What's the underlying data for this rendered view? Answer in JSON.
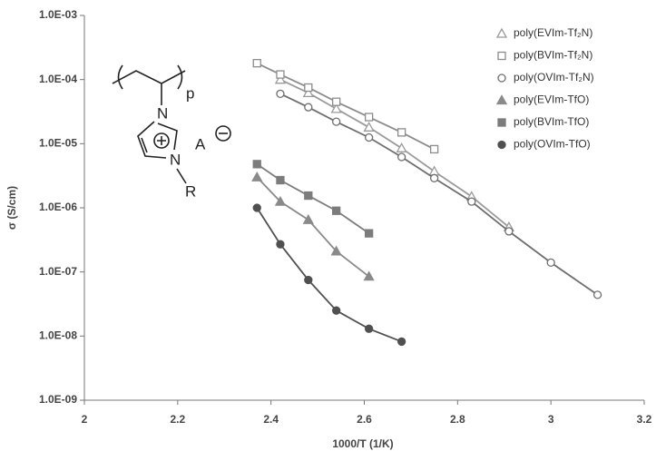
{
  "chart_data": {
    "type": "scatter",
    "x_label": "1000/T (1/K)",
    "y_label": "σ (S/cm)",
    "xlim": [
      2,
      3.2
    ],
    "xticks": [
      2,
      2.2,
      2.4,
      2.6,
      2.8,
      3,
      3.2
    ],
    "ylim": [
      1e-09,
      0.001
    ],
    "ylog": true,
    "yticks": [
      {
        "value": 1e-09,
        "label": "1.0E-09"
      },
      {
        "value": 1e-08,
        "label": "1.0E-08"
      },
      {
        "value": 1e-07,
        "label": "1.0E-07"
      },
      {
        "value": 1e-06,
        "label": "1.0E-06"
      },
      {
        "value": 1e-05,
        "label": "1.0E-05"
      },
      {
        "value": 0.0001,
        "label": "1.0E-04"
      },
      {
        "value": 0.001,
        "label": "1.0E-03"
      }
    ],
    "grid": false,
    "legend": "top-right",
    "series": [
      {
        "name": "poly(EVIm-Tf₂N)",
        "color": "#9a9a9a",
        "marker": "triangle",
        "filled": false,
        "x": [
          2.42,
          2.48,
          2.54,
          2.61,
          2.68,
          2.75,
          2.83,
          2.91
        ],
        "values": [
          0.0001,
          6.2e-05,
          3.5e-05,
          1.8e-05,
          8.5e-06,
          3.7e-06,
          1.5e-06,
          5e-07
        ]
      },
      {
        "name": "poly(BVIm-Tf₂N)",
        "color": "#8c8c8c",
        "marker": "square",
        "filled": false,
        "x": [
          2.37,
          2.42,
          2.48,
          2.54,
          2.61,
          2.68,
          2.75
        ],
        "values": [
          0.00018,
          0.00012,
          7.5e-05,
          4.5e-05,
          2.6e-05,
          1.5e-05,
          8.2e-06
        ]
      },
      {
        "name": "poly(OVIm-Tf₂N)",
        "color": "#6e6e6e",
        "marker": "circle",
        "filled": false,
        "x": [
          2.42,
          2.48,
          2.54,
          2.61,
          2.68,
          2.75,
          2.83,
          2.91,
          3.0,
          3.1
        ],
        "values": [
          6e-05,
          3.7e-05,
          2.2e-05,
          1.25e-05,
          6.2e-06,
          2.9e-06,
          1.25e-06,
          4.3e-07,
          1.4e-07,
          4.4e-08
        ]
      },
      {
        "name": "poly(EVIm-TfO)",
        "color": "#8a8a8a",
        "marker": "triangle",
        "filled": true,
        "x": [
          2.37,
          2.42,
          2.48,
          2.54,
          2.61
        ],
        "values": [
          3e-06,
          1.25e-06,
          6.5e-07,
          2.1e-07,
          8.5e-08
        ]
      },
      {
        "name": "poly(BVIm-TfO)",
        "color": "#7c7c7c",
        "marker": "square",
        "filled": true,
        "x": [
          2.37,
          2.42,
          2.48,
          2.54,
          2.61
        ],
        "values": [
          4.8e-06,
          2.7e-06,
          1.55e-06,
          9e-07,
          4e-07
        ]
      },
      {
        "name": "poly(OVIm-TfO)",
        "color": "#505050",
        "marker": "circle",
        "filled": true,
        "x": [
          2.37,
          2.42,
          2.48,
          2.54,
          2.61,
          2.68
        ],
        "values": [
          1e-06,
          2.7e-07,
          7.5e-08,
          2.5e-08,
          1.3e-08,
          8.2e-09
        ]
      }
    ]
  },
  "structure": {
    "atom_top": "N",
    "atom_bottom": "N",
    "counter_ion": "A",
    "substituent": "R",
    "repeat": "p"
  }
}
